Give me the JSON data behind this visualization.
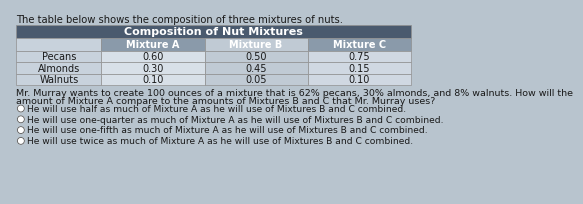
{
  "intro_text": "The table below shows the composition of three mixtures of nuts.",
  "table_title": "Composition of Nut Mixtures",
  "col_headers": [
    "",
    "Mixture A",
    "Mixture B",
    "Mixture C"
  ],
  "rows": [
    [
      "Pecans",
      "0.60",
      "0.50",
      "0.75"
    ],
    [
      "Almonds",
      "0.30",
      "0.45",
      "0.15"
    ],
    [
      "Walnuts",
      "0.10",
      "0.05",
      "0.10"
    ]
  ],
  "question_line1": "Mr. Murray wants to create 100 ounces of a mixture that is 62% pecans, 30% almonds, and 8% walnuts. How will the",
  "question_line2": "amount of Mixture A compare to the amounts of Mixtures B and C that Mr. Murray uses?",
  "options": [
    "He will use half as much of Mixture A as he will use of Mixtures B and C combined.",
    "He will use one-quarter as much of Mixture A as he will use of Mixtures B and C combined.",
    "He will use one-fifth as much of Mixture A as he will use of Mixtures B and C combined.",
    "He will use twice as much of Mixture A as he will use of Mixtures B and C combined."
  ],
  "bg_color": "#b8c4ce",
  "table_title_bg": "#4a5a6e",
  "table_title_text": "#ffffff",
  "table_subheader_bg": "#8a9aaa",
  "table_subheader_text": "#ffffff",
  "col0_bg": "#c8d2dc",
  "col1_bg": "#d8e0e8",
  "col2_bg": "#c0cad4",
  "col3_bg": "#d0d8e2",
  "border_color": "#909090",
  "text_color": "#1a1a1a",
  "fs_intro": 7.2,
  "fs_title": 8.0,
  "fs_header": 7.0,
  "fs_data": 7.0,
  "fs_question": 6.8,
  "fs_option": 6.6
}
